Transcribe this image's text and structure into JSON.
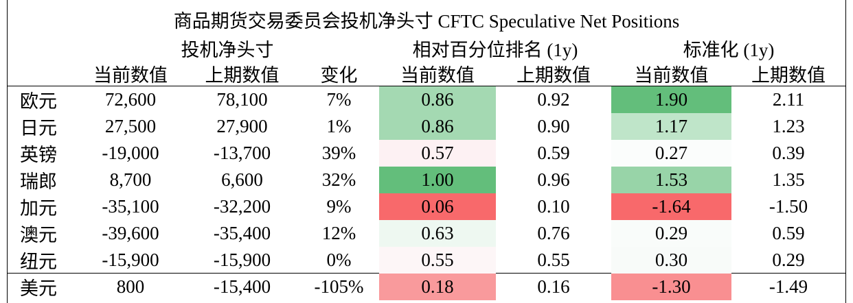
{
  "title": "商品期货交易委员会投机净头寸 CFTC Speculative Net Positions",
  "groups": [
    "投机净头寸",
    "相对百分位排名 (1y)",
    "标准化 (1y)"
  ],
  "columns": [
    "当前数值",
    "上期数值",
    "变化",
    "当前数值",
    "上期数值",
    "当前数值",
    "上期数值"
  ],
  "rows": [
    {
      "name": "欧元",
      "values": [
        "72,600",
        "78,100",
        "7%",
        "0.86",
        "0.92",
        "1.90",
        "2.11"
      ],
      "fills": [
        "#a4d9b2",
        "#63be7b"
      ]
    },
    {
      "name": "日元",
      "values": [
        "27,500",
        "27,900",
        "1%",
        "0.86",
        "0.90",
        "1.17",
        "1.23"
      ],
      "fills": [
        "#a4d9b2",
        "#bfe5c9"
      ]
    },
    {
      "name": "英镑",
      "values": [
        "-19,000",
        "-13,700",
        "39%",
        "0.57",
        "0.59",
        "0.27",
        "0.39"
      ],
      "fills": [
        "#fdf1f3",
        "#fbfdfc"
      ]
    },
    {
      "name": "瑞郎",
      "values": [
        "8,700",
        "6,600",
        "32%",
        "1.00",
        "0.96",
        "1.53",
        "1.35"
      ],
      "fills": [
        "#63be7b",
        "#98d4a8"
      ]
    },
    {
      "name": "加元",
      "values": [
        "-35,100",
        "-32,200",
        "9%",
        "0.06",
        "0.10",
        "-1.64",
        "-1.50"
      ],
      "fills": [
        "#f8696b",
        "#f8696b"
      ]
    },
    {
      "name": "澳元",
      "values": [
        "-39,600",
        "-35,400",
        "12%",
        "0.63",
        "0.76",
        "0.29",
        "0.59"
      ],
      "fills": [
        "#eef8f1",
        "#f9fcfa"
      ]
    },
    {
      "name": "纽元",
      "values": [
        "-15,900",
        "-15,900",
        "0%",
        "0.55",
        "0.55",
        "0.30",
        "0.29"
      ],
      "fills": [
        "#fdf6f7",
        "#f8fbf9"
      ]
    },
    {
      "name": "美元",
      "values": [
        "800",
        "-15,400",
        "-105%",
        "0.18",
        "0.16",
        "-1.30",
        "-1.49"
      ],
      "fills": [
        "#f99a9c",
        "#f98f91"
      ]
    }
  ]
}
